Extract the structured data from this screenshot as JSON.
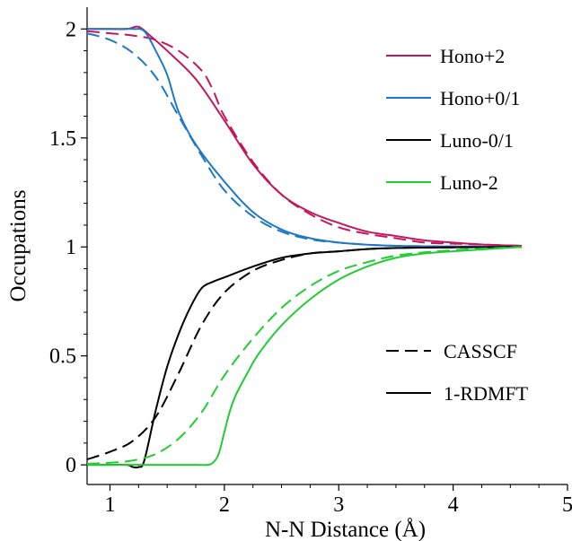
{
  "chart_data": {
    "type": "line",
    "title": "",
    "xlabel": "N-N Distance (Å)",
    "ylabel": "Occupations",
    "xlim": [
      0.8,
      5.0
    ],
    "ylim": [
      -0.09,
      2.1
    ],
    "xticks": [
      1,
      2,
      3,
      4,
      5
    ],
    "xtick_labels": [
      "1",
      "2",
      "3",
      "4",
      "5"
    ],
    "yticks": [
      0,
      0.5,
      1,
      1.5,
      2
    ],
    "ytick_labels": [
      "0",
      "0.5",
      "1",
      "1.5",
      "2"
    ],
    "grid": false,
    "legend_color": {
      "placement": "top-right",
      "entries": [
        {
          "label": "Hono+2",
          "color": "#c2185b"
        },
        {
          "label": "Hono+0/1",
          "color": "#1e78c8"
        },
        {
          "label": "Luno-0/1",
          "color": "#000000"
        },
        {
          "label": "Luno-2",
          "color": "#22cc33"
        }
      ]
    },
    "legend_style": {
      "placement": "bottom-right",
      "entries": [
        {
          "label": "CASSCF",
          "dash": "dashed"
        },
        {
          "label": "1-RDMFT",
          "dash": "solid"
        }
      ]
    },
    "series": [
      {
        "method": "1-RDMFT",
        "orbital": "Hono+2",
        "color": "#c2185b",
        "dash": "solid",
        "x": [
          0.8,
          1.0,
          1.15,
          1.25,
          1.35,
          1.5,
          1.75,
          2.0,
          2.25,
          2.5,
          2.75,
          3.0,
          3.25,
          3.5,
          3.75,
          4.0,
          4.3,
          4.6
        ],
        "y": [
          2.0,
          2.0,
          2.0,
          2.01,
          1.97,
          1.9,
          1.77,
          1.58,
          1.38,
          1.24,
          1.16,
          1.11,
          1.07,
          1.05,
          1.03,
          1.02,
          1.01,
          1.005
        ]
      },
      {
        "method": "CASSCF",
        "orbital": "Hono+2",
        "color": "#c2185b",
        "dash": "dashed",
        "x": [
          0.8,
          1.0,
          1.2,
          1.4,
          1.6,
          1.8,
          1.9,
          2.0,
          2.25,
          2.5,
          2.75,
          3.0,
          3.25,
          3.5,
          3.75,
          4.0,
          4.3,
          4.6
        ],
        "y": [
          1.99,
          1.98,
          1.97,
          1.95,
          1.9,
          1.81,
          1.72,
          1.6,
          1.39,
          1.24,
          1.15,
          1.09,
          1.06,
          1.04,
          1.02,
          1.015,
          1.01,
          1.005
        ]
      },
      {
        "method": "1-RDMFT",
        "orbital": "Hono+0/1",
        "color": "#1e78c8",
        "dash": "solid",
        "x": [
          0.8,
          1.0,
          1.2,
          1.3,
          1.4,
          1.5,
          1.6,
          1.75,
          2.0,
          2.25,
          2.5,
          2.75,
          3.0,
          3.25,
          3.5,
          3.75,
          4.0,
          4.3,
          4.6
        ],
        "y": [
          2.0,
          2.0,
          2.0,
          1.99,
          1.9,
          1.79,
          1.62,
          1.47,
          1.3,
          1.16,
          1.08,
          1.04,
          1.02,
          1.01,
          1.005,
          1.003,
          1.002,
          1.001,
          1.0
        ]
      },
      {
        "method": "CASSCF",
        "orbital": "Hono+0/1",
        "color": "#1e78c8",
        "dash": "dashed",
        "x": [
          0.8,
          1.0,
          1.2,
          1.4,
          1.6,
          1.8,
          2.0,
          2.25,
          2.5,
          2.75,
          3.0,
          3.25,
          3.5,
          3.75,
          4.0,
          4.3,
          4.6
        ],
        "y": [
          1.98,
          1.95,
          1.89,
          1.78,
          1.6,
          1.42,
          1.26,
          1.14,
          1.07,
          1.035,
          1.02,
          1.01,
          1.005,
          1.003,
          1.002,
          1.001,
          1.0
        ]
      },
      {
        "method": "1-RDMFT",
        "orbital": "Luno-0/1",
        "color": "#000000",
        "dash": "solid",
        "x": [
          0.8,
          1.0,
          1.15,
          1.2,
          1.25,
          1.3,
          1.4,
          1.5,
          1.6,
          1.7,
          1.8,
          1.9,
          2.0,
          2.25,
          2.5,
          2.75,
          3.0,
          3.25,
          3.5,
          3.75,
          4.0,
          4.3,
          4.6
        ],
        "y": [
          0.0,
          0.0,
          0.0,
          -0.01,
          -0.01,
          0.02,
          0.25,
          0.45,
          0.6,
          0.72,
          0.81,
          0.84,
          0.86,
          0.91,
          0.95,
          0.97,
          0.98,
          0.99,
          0.995,
          0.997,
          0.998,
          0.999,
          1.0
        ]
      },
      {
        "method": "CASSCF",
        "orbital": "Luno-0/1",
        "color": "#000000",
        "dash": "dashed",
        "x": [
          0.8,
          1.0,
          1.2,
          1.4,
          1.6,
          1.8,
          2.0,
          2.25,
          2.5,
          2.75,
          3.0,
          3.25,
          3.5,
          3.75,
          4.0,
          4.3,
          4.6
        ],
        "y": [
          0.025,
          0.06,
          0.11,
          0.22,
          0.42,
          0.64,
          0.79,
          0.89,
          0.94,
          0.97,
          0.98,
          0.99,
          0.995,
          0.997,
          0.998,
          0.999,
          1.0
        ]
      },
      {
        "method": "1-RDMFT",
        "orbital": "Luno-2",
        "color": "#22cc33",
        "dash": "solid",
        "x": [
          0.8,
          1.0,
          1.25,
          1.5,
          1.75,
          1.85,
          1.9,
          1.95,
          2.0,
          2.05,
          2.1,
          2.2,
          2.3,
          2.5,
          2.75,
          3.0,
          3.25,
          3.5,
          3.75,
          4.0,
          4.3,
          4.6
        ],
        "y": [
          0.0,
          0.0,
          0.0,
          0.0,
          0.0,
          0.0,
          0.01,
          0.05,
          0.15,
          0.25,
          0.32,
          0.42,
          0.51,
          0.64,
          0.76,
          0.85,
          0.91,
          0.95,
          0.97,
          0.98,
          0.99,
          1.0
        ]
      },
      {
        "method": "CASSCF",
        "orbital": "Luno-2",
        "color": "#22cc33",
        "dash": "dashed",
        "x": [
          0.8,
          1.0,
          1.2,
          1.4,
          1.6,
          1.8,
          2.0,
          2.25,
          2.5,
          2.75,
          3.0,
          3.25,
          3.5,
          3.75,
          4.0,
          4.3,
          4.6
        ],
        "y": [
          0.005,
          0.01,
          0.02,
          0.05,
          0.12,
          0.24,
          0.41,
          0.58,
          0.72,
          0.82,
          0.89,
          0.93,
          0.96,
          0.975,
          0.985,
          0.993,
          1.0
        ]
      }
    ]
  }
}
